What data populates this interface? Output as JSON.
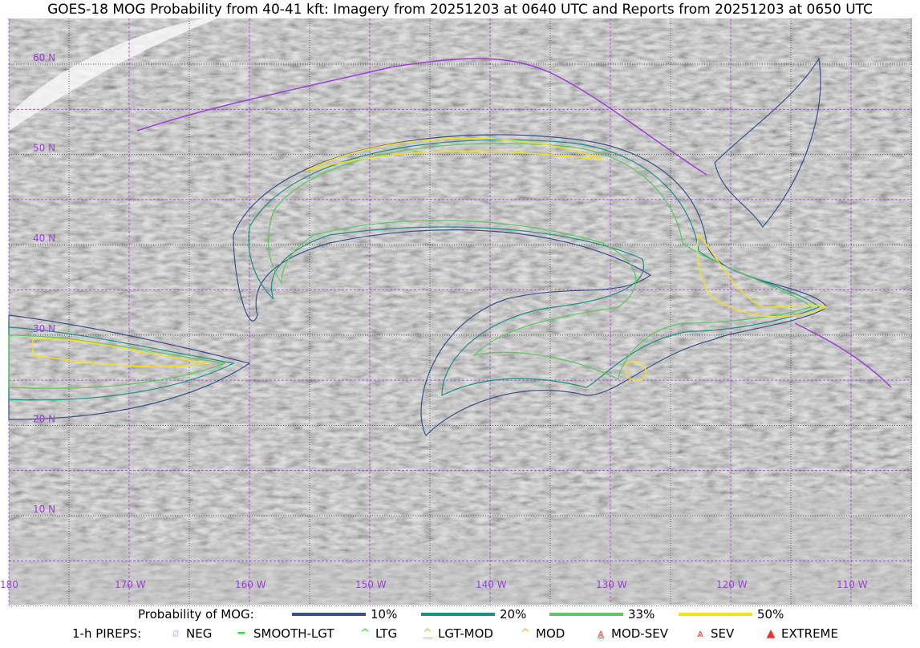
{
  "title": "GOES-18 MOG Probability from 40-41 kft: Imagery from 20251203 at 0640 UTC and Reports from 20251203 at 0650 UTC",
  "map": {
    "lat_labels": [
      "60 N",
      "50 N",
      "40 N",
      "30 N",
      "20 N",
      "10 N"
    ],
    "lon_labels": [
      "180",
      "170 W",
      "160 W",
      "150 W",
      "140 W",
      "130 W",
      "120 W",
      "110 W"
    ],
    "colors": {
      "grid": "#9b3fd6",
      "coast": "#9b3fd6",
      "p10": "#3b4f8c",
      "p20": "#1f8f86",
      "p33": "#5cc85e",
      "p50": "#f5e020"
    }
  },
  "legend": {
    "prob_label": "Probability of MOG:",
    "prob_items": [
      {
        "label": "10%",
        "color": "#3b4f8c"
      },
      {
        "label": "20%",
        "color": "#1f8f86"
      },
      {
        "label": "33%",
        "color": "#5cc85e"
      },
      {
        "label": "50%",
        "color": "#f5e020"
      }
    ],
    "pirep_label": "1-h PIREPS:",
    "pirep_items": [
      {
        "label": "NEG",
        "color": "#c8c8f5",
        "icon": "slashed-circle-icon"
      },
      {
        "label": "SMOOTH-LGT",
        "color": "#22e022",
        "icon": "line-icon"
      },
      {
        "label": "LTG",
        "color": "#22e022",
        "icon": "caret-icon"
      },
      {
        "label": "LGT-MOD",
        "color": "#f5b020",
        "icon": "caret-underline-icon"
      },
      {
        "label": "MOD",
        "color": "#f5b020",
        "icon": "caret-icon"
      },
      {
        "label": "MOD-SEV",
        "color": "#f03030",
        "icon": "double-caret-underline-icon"
      },
      {
        "label": "SEV",
        "color": "#f03030",
        "icon": "double-caret-icon"
      },
      {
        "label": "EXTREME",
        "color": "#f03030",
        "icon": "filled-triangle-icon"
      }
    ]
  }
}
